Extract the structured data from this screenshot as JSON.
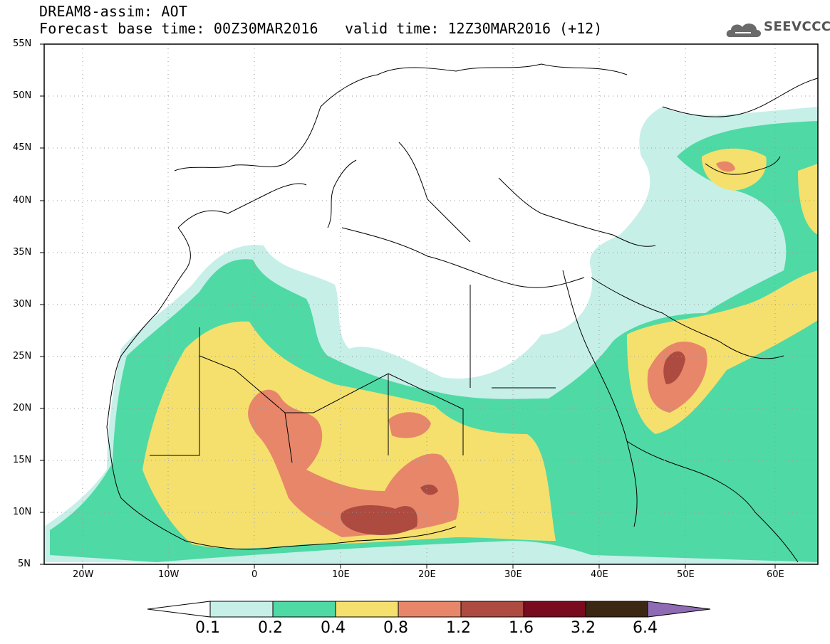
{
  "header": {
    "line1": "DREAM8-assim: AOT",
    "line2": "Forecast base time: 00Z30MAR2016",
    "valid": "valid time: 12Z30MAR2016 (+12)",
    "logo_text": "SEEVCCC"
  },
  "map": {
    "variable": "AOT",
    "lat_labels": [
      "55N",
      "50N",
      "45N",
      "40N",
      "35N",
      "30N",
      "25N",
      "20N",
      "15N",
      "10N",
      "5N"
    ],
    "lon_labels": [
      "20W",
      "10W",
      "0",
      "10E",
      "20E",
      "30E",
      "40E",
      "50E",
      "60E"
    ],
    "lat_range": [
      5,
      55
    ],
    "lon_range": [
      -25,
      65
    ],
    "grid": true
  },
  "colorbar": {
    "levels": [
      "0.1",
      "0.2",
      "0.4",
      "0.8",
      "1.2",
      "1.6",
      "3.2",
      "6.4"
    ],
    "colors": [
      "#c6efe8",
      "#4fd9a5",
      "#f5e06d",
      "#e8866a",
      "#ad4b40",
      "#7a0b1f",
      "#3c2713",
      "#8e6bb3"
    ],
    "under_color": "#ffffff"
  }
}
